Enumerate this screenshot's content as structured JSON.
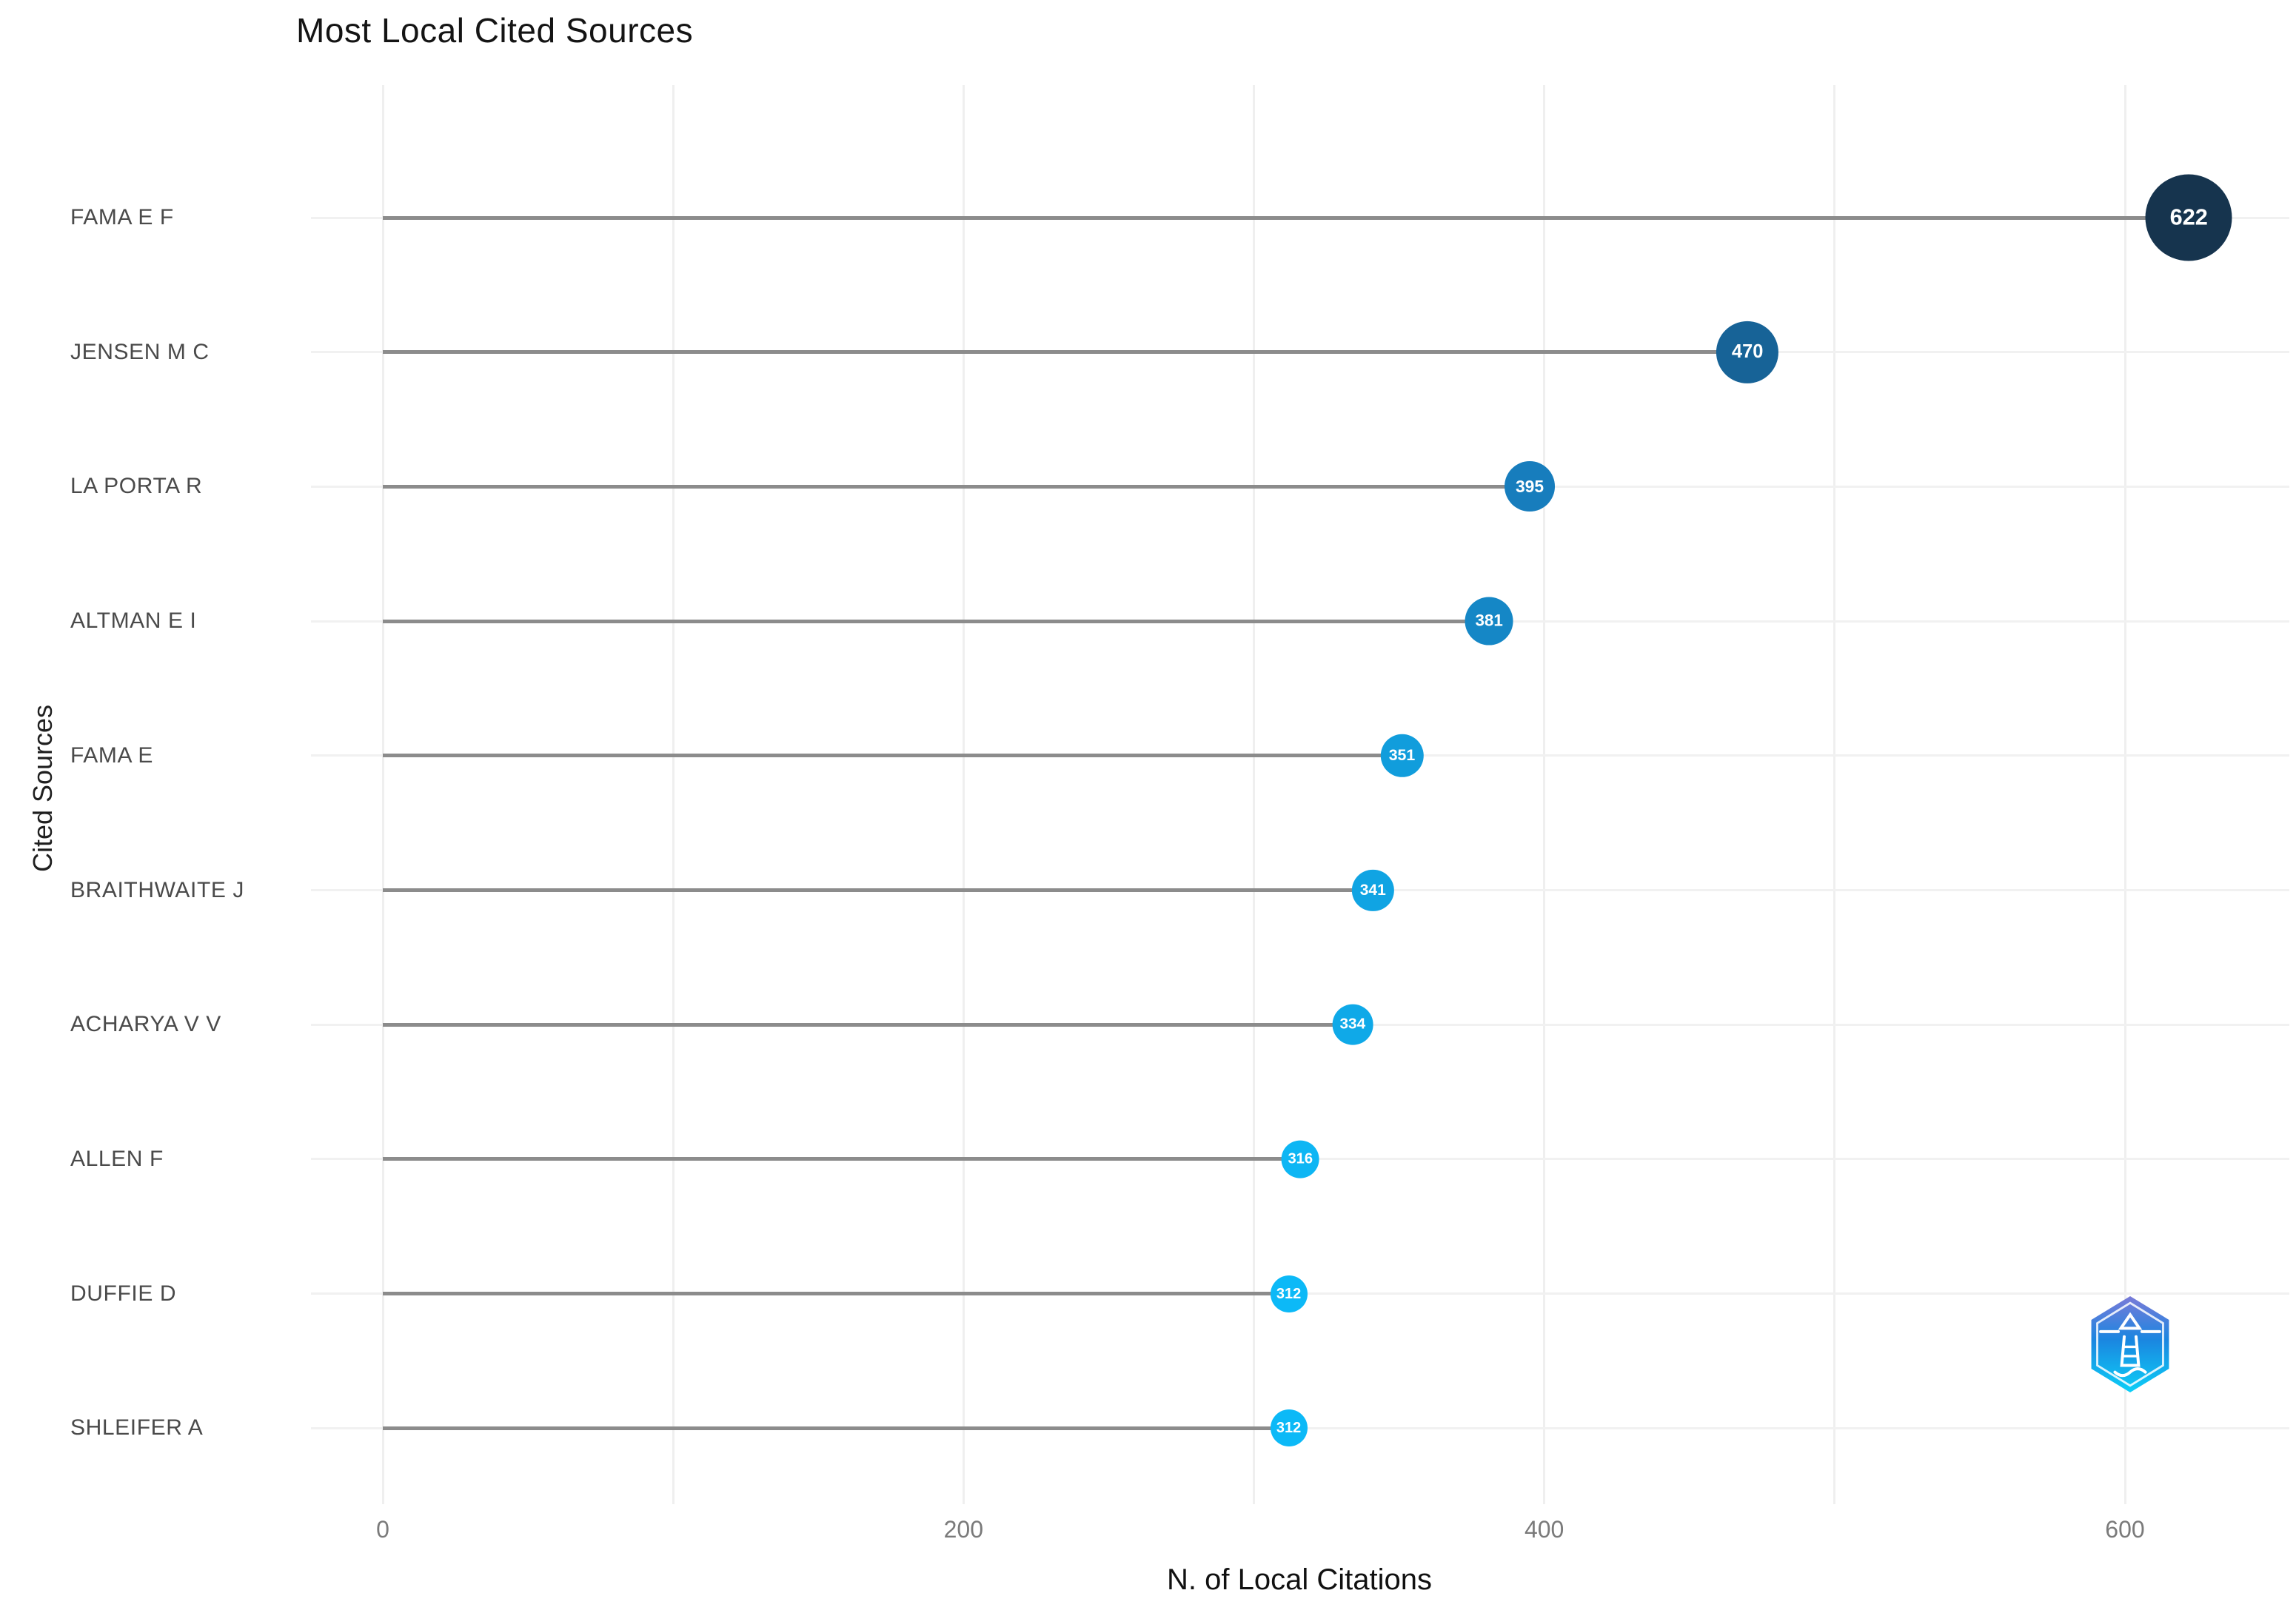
{
  "title": "Most Local Cited Sources",
  "chart_data": {
    "type": "scatter",
    "variant": "horizontal-lollipop",
    "title": "Most Local Cited Sources",
    "xlabel": "N. of Local Citations",
    "ylabel": "Cited Sources",
    "categories": [
      "FAMA E F",
      "JENSEN M C",
      "LA PORTA R",
      "ALTMAN E I",
      "FAMA E",
      "BRAITHWAITE J",
      "ACHARYA V V",
      "ALLEN F",
      "DUFFIE D",
      "SHLEIFER A"
    ],
    "values": [
      622,
      470,
      395,
      381,
      351,
      341,
      334,
      316,
      312,
      312
    ],
    "xlim": [
      0,
      660
    ],
    "xticks": [
      0,
      200,
      400,
      600
    ],
    "minor_xticks": [
      100,
      300,
      500
    ],
    "grid": "on",
    "legend": "none",
    "point_color_scale": [
      {
        "value": 312,
        "color": "#0cb9f7"
      },
      {
        "value": 400,
        "color": "#1879b9"
      },
      {
        "value": 622,
        "color": "#16344e"
      }
    ],
    "stem_color": "#8c8c8c",
    "grid_color": "#efefef",
    "category_label_color": "#4a4a4a",
    "tick_label_color": "#7a7a7a",
    "value_label_color": "#ffffff"
  },
  "logo": {
    "name": "bibliometrix-lighthouse-logo",
    "gradient": [
      "#7a7ad8",
      "#1b86e0",
      "#0ccff7"
    ]
  }
}
